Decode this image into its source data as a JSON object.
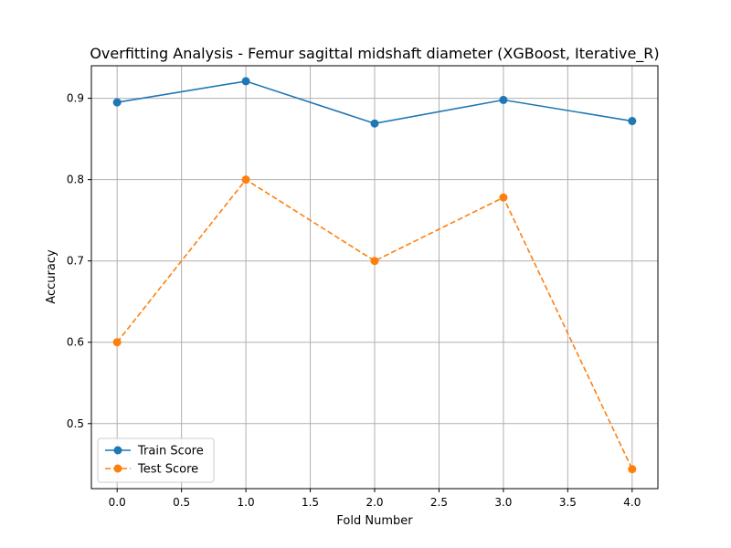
{
  "chart_data": {
    "type": "line",
    "title": "Overfitting Analysis - Femur sagittal midshaft diameter (XGBoost, Iterative_R)",
    "xlabel": "Fold Number",
    "ylabel": "Accuracy",
    "xlim": [
      -0.2,
      4.2
    ],
    "ylim": [
      0.42,
      0.94
    ],
    "x_ticks": [
      0.0,
      0.5,
      1.0,
      1.5,
      2.0,
      2.5,
      3.0,
      3.5,
      4.0
    ],
    "x_tick_labels": [
      "0.0",
      "0.5",
      "1.0",
      "1.5",
      "2.0",
      "2.5",
      "3.0",
      "3.5",
      "4.0"
    ],
    "y_ticks": [
      0.5,
      0.6,
      0.7,
      0.8,
      0.9
    ],
    "y_tick_labels": [
      "0.5",
      "0.6",
      "0.7",
      "0.8",
      "0.9"
    ],
    "grid": true,
    "legend_position": "lower-left",
    "x": [
      0,
      1,
      2,
      3,
      4
    ],
    "series": [
      {
        "name": "Train Score",
        "values": [
          0.895,
          0.921,
          0.869,
          0.898,
          0.872
        ],
        "color": "#1f77b4",
        "line_style": "solid",
        "marker": "circle"
      },
      {
        "name": "Test Score",
        "values": [
          0.6,
          0.8,
          0.7,
          0.778,
          0.444
        ],
        "color": "#ff7f0e",
        "line_style": "dashed",
        "marker": "circle"
      }
    ]
  }
}
